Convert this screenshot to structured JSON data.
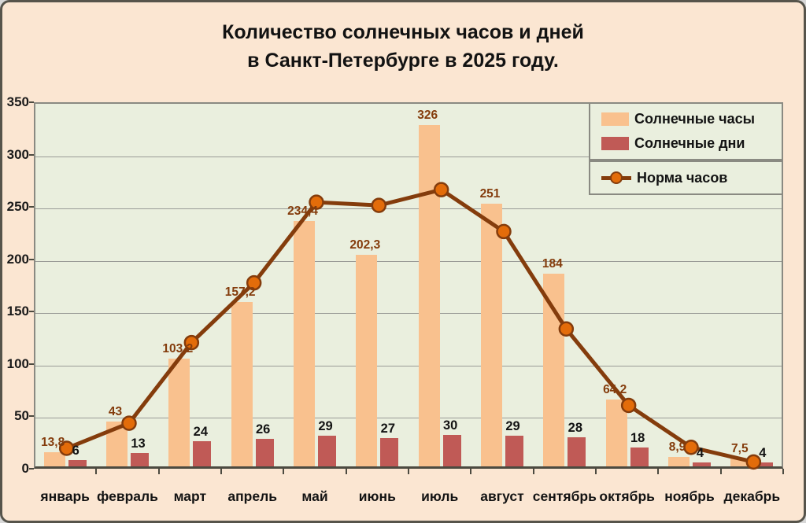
{
  "title": {
    "line1": "Количество солнечных часов и дней",
    "line2": "в Санкт-Петербурге в 2025 году."
  },
  "chart_data": {
    "type": "bar",
    "title": "Количество солнечных часов и дней в Санкт-Петербурге в 2025 году.",
    "categories": [
      "январь",
      "февраль",
      "март",
      "апрель",
      "май",
      "июнь",
      "июль",
      "август",
      "сентябрь",
      "октябрь",
      "ноябрь",
      "декабрь"
    ],
    "series": [
      {
        "name": "Солнечные часы",
        "type": "bar",
        "color": "#f9c18e",
        "values": [
          13.8,
          43,
          103.2,
          157.2,
          234.4,
          202.3,
          326,
          251,
          184,
          64.2,
          8.9,
          7.5
        ],
        "labels": [
          "13,8",
          "43",
          "103,2",
          "157,2",
          "234,4",
          "202,3",
          "326",
          "251",
          "184",
          "64,2",
          "8,9",
          "7,5"
        ]
      },
      {
        "name": "Солнечные дни",
        "type": "bar",
        "color": "#c05a56",
        "values": [
          6,
          13,
          24,
          26,
          29,
          27,
          30,
          29,
          28,
          18,
          4,
          4
        ],
        "labels": [
          "6",
          "13",
          "24",
          "26",
          "29",
          "27",
          "30",
          "29",
          "28",
          "18",
          "4",
          "4"
        ]
      },
      {
        "name": "Норма часов",
        "type": "line",
        "color": "#843c0c",
        "marker_color": "#e36c0a",
        "values": [
          21,
          45,
          122,
          179,
          256,
          253,
          268,
          228,
          135,
          62,
          22,
          8
        ]
      }
    ],
    "ylim": [
      0,
      350
    ],
    "ytick_step": 50,
    "grid": true,
    "legend_position": "top-right",
    "value_label_colors": {
      "hours": "#843c0c",
      "days": "#131313"
    }
  },
  "colors": {
    "outer_background": "#fbe6d2",
    "plot_background": "#eaefde",
    "frame_border": "#56544b",
    "gridline": "#7f7f7f"
  }
}
